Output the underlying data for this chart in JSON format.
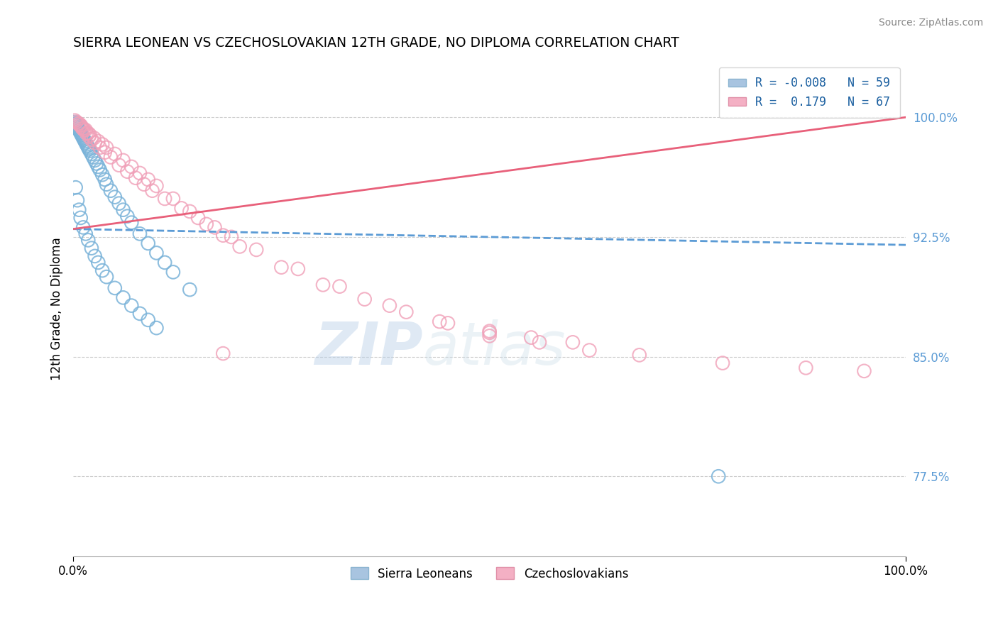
{
  "title": "SIERRA LEONEAN VS CZECHOSLOVAKIAN 12TH GRADE, NO DIPLOMA CORRELATION CHART",
  "source": "Source: ZipAtlas.com",
  "ylabel": "12th Grade, No Diploma",
  "ylabel_right_labels": [
    "100.0%",
    "92.5%",
    "85.0%",
    "77.5%"
  ],
  "ylabel_right_values": [
    1.0,
    0.925,
    0.85,
    0.775
  ],
  "watermark_zip": "ZIP",
  "watermark_atlas": "atlas",
  "blue_color": "#7ab3d9",
  "pink_color": "#f0a0b8",
  "blue_line_color": "#5b9bd5",
  "pink_line_color": "#e8607a",
  "R_blue": -0.008,
  "R_pink": 0.179,
  "N_blue": 59,
  "N_pink": 67,
  "xmin": 0.0,
  "xmax": 1.0,
  "ymin": 0.725,
  "ymax": 1.035,
  "blue_line_x0": 0.0,
  "blue_line_y0": 0.93,
  "blue_line_x1": 1.0,
  "blue_line_y1": 0.92,
  "pink_line_x0": 0.0,
  "pink_line_y0": 0.93,
  "pink_line_x1": 1.0,
  "pink_line_y1": 1.0,
  "blue_scatter_x": [
    0.002,
    0.003,
    0.004,
    0.005,
    0.006,
    0.007,
    0.008,
    0.009,
    0.01,
    0.011,
    0.012,
    0.013,
    0.014,
    0.015,
    0.016,
    0.017,
    0.018,
    0.019,
    0.02,
    0.022,
    0.024,
    0.026,
    0.028,
    0.03,
    0.032,
    0.035,
    0.038,
    0.04,
    0.045,
    0.05,
    0.055,
    0.06,
    0.065,
    0.07,
    0.08,
    0.09,
    0.1,
    0.11,
    0.12,
    0.14,
    0.003,
    0.005,
    0.007,
    0.009,
    0.012,
    0.015,
    0.018,
    0.022,
    0.026,
    0.03,
    0.035,
    0.04,
    0.05,
    0.06,
    0.07,
    0.08,
    0.09,
    0.1,
    0.775
  ],
  "blue_scatter_y": [
    0.997,
    0.996,
    0.995,
    0.994,
    0.993,
    0.992,
    0.991,
    0.99,
    0.989,
    0.988,
    0.987,
    0.986,
    0.985,
    0.984,
    0.983,
    0.982,
    0.981,
    0.98,
    0.979,
    0.977,
    0.975,
    0.973,
    0.971,
    0.969,
    0.967,
    0.964,
    0.961,
    0.958,
    0.954,
    0.95,
    0.946,
    0.942,
    0.938,
    0.934,
    0.927,
    0.921,
    0.915,
    0.909,
    0.903,
    0.892,
    0.956,
    0.948,
    0.942,
    0.937,
    0.931,
    0.927,
    0.923,
    0.918,
    0.913,
    0.909,
    0.904,
    0.9,
    0.893,
    0.887,
    0.882,
    0.877,
    0.873,
    0.868,
    0.775
  ],
  "pink_scatter_x": [
    0.002,
    0.004,
    0.006,
    0.008,
    0.01,
    0.012,
    0.015,
    0.018,
    0.02,
    0.025,
    0.03,
    0.035,
    0.04,
    0.05,
    0.06,
    0.07,
    0.08,
    0.09,
    0.1,
    0.12,
    0.14,
    0.16,
    0.18,
    0.2,
    0.25,
    0.3,
    0.35,
    0.4,
    0.45,
    0.5,
    0.55,
    0.6,
    0.007,
    0.009,
    0.011,
    0.013,
    0.016,
    0.019,
    0.022,
    0.026,
    0.032,
    0.038,
    0.045,
    0.055,
    0.065,
    0.075,
    0.085,
    0.095,
    0.11,
    0.13,
    0.15,
    0.17,
    0.19,
    0.22,
    0.27,
    0.32,
    0.38,
    0.44,
    0.5,
    0.56,
    0.62,
    0.68,
    0.78,
    0.88,
    0.95,
    0.18,
    0.5
  ],
  "pink_scatter_y": [
    0.998,
    0.997,
    0.996,
    0.995,
    0.994,
    0.993,
    0.992,
    0.99,
    0.989,
    0.987,
    0.985,
    0.983,
    0.981,
    0.977,
    0.973,
    0.969,
    0.965,
    0.961,
    0.957,
    0.949,
    0.941,
    0.933,
    0.926,
    0.919,
    0.906,
    0.895,
    0.886,
    0.878,
    0.871,
    0.866,
    0.862,
    0.859,
    0.996,
    0.995,
    0.993,
    0.992,
    0.99,
    0.988,
    0.986,
    0.984,
    0.981,
    0.978,
    0.975,
    0.97,
    0.966,
    0.962,
    0.958,
    0.954,
    0.949,
    0.943,
    0.937,
    0.931,
    0.925,
    0.917,
    0.905,
    0.894,
    0.882,
    0.872,
    0.865,
    0.859,
    0.854,
    0.851,
    0.846,
    0.843,
    0.841,
    0.852,
    0.863
  ]
}
